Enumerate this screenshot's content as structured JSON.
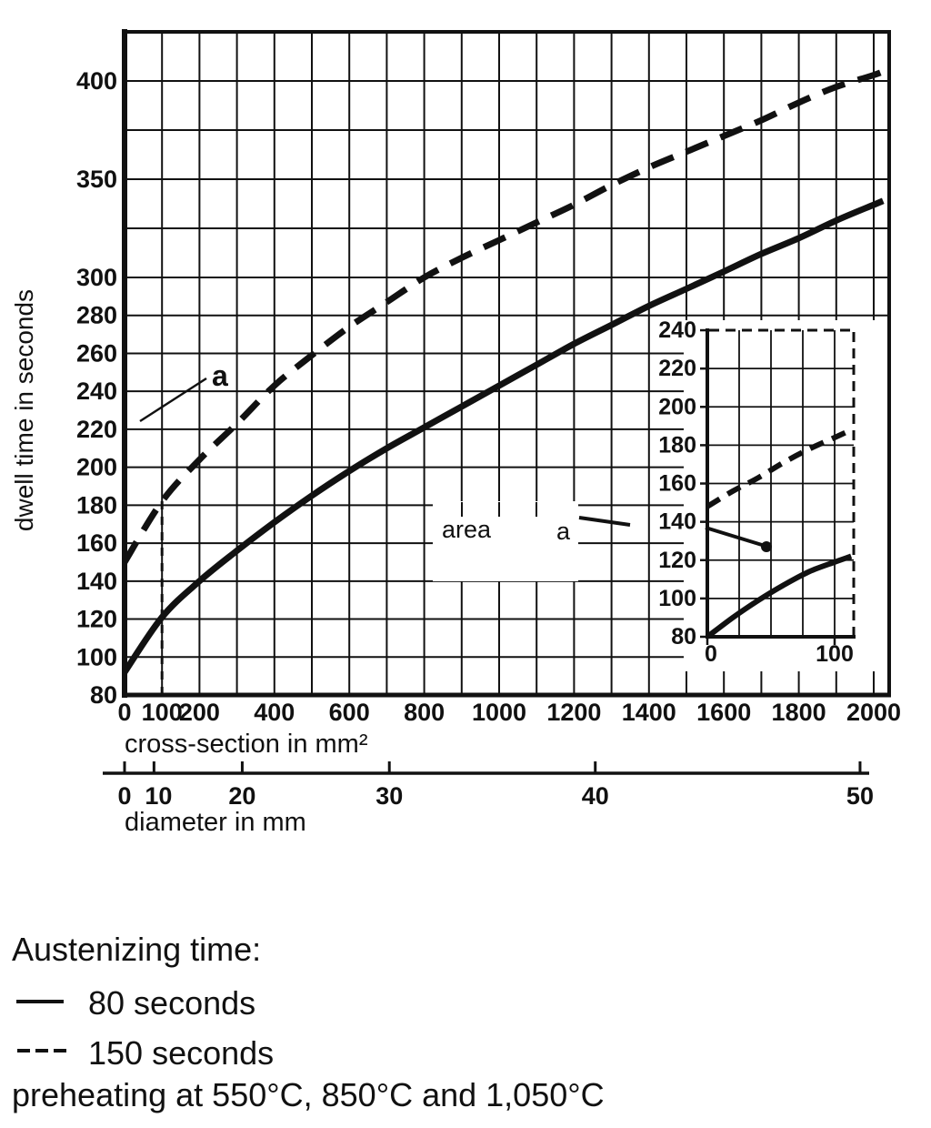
{
  "chart_data": {
    "type": "line",
    "title": "",
    "xlabel": "cross-section in mm²",
    "ylabel": "dwell time in seconds",
    "secondary_xlabel": "diameter in mm",
    "xlim": [
      0,
      2040
    ],
    "ylim": [
      80,
      425
    ],
    "grid": true,
    "x_tick_labels": [
      0,
      100,
      200,
      400,
      600,
      800,
      1000,
      1200,
      1400,
      1600,
      1800,
      2000
    ],
    "x_gridline_step": 100,
    "y_tick_labels": [
      80,
      100,
      120,
      140,
      160,
      180,
      200,
      220,
      240,
      260,
      280,
      300,
      350,
      400
    ],
    "y_gridlines_unlabeled": [
      325,
      375
    ],
    "series": [
      {
        "name": "80 seconds",
        "style": "solid",
        "points": [
          [
            0,
            92
          ],
          [
            100,
            121
          ],
          [
            200,
            140
          ],
          [
            300,
            156
          ],
          [
            400,
            171
          ],
          [
            500,
            185
          ],
          [
            600,
            198
          ],
          [
            700,
            210
          ],
          [
            800,
            221
          ],
          [
            900,
            232
          ],
          [
            1000,
            243
          ],
          [
            1100,
            254
          ],
          [
            1200,
            265
          ],
          [
            1300,
            275
          ],
          [
            1400,
            285
          ],
          [
            1500,
            294
          ],
          [
            1600,
            303
          ],
          [
            1700,
            312
          ],
          [
            1800,
            320
          ],
          [
            1900,
            329
          ],
          [
            2000,
            337
          ],
          [
            2025,
            339
          ]
        ]
      },
      {
        "name": "150 seconds",
        "style": "dashed",
        "points": [
          [
            0,
            150
          ],
          [
            100,
            182
          ],
          [
            200,
            204
          ],
          [
            300,
            223
          ],
          [
            400,
            243
          ],
          [
            500,
            259
          ],
          [
            600,
            274
          ],
          [
            700,
            287
          ],
          [
            800,
            300
          ],
          [
            900,
            310
          ],
          [
            1000,
            319
          ],
          [
            1100,
            328
          ],
          [
            1200,
            337
          ],
          [
            1300,
            347
          ],
          [
            1400,
            356
          ],
          [
            1500,
            364
          ],
          [
            1600,
            372
          ],
          [
            1700,
            380
          ],
          [
            1800,
            389
          ],
          [
            1900,
            397
          ],
          [
            2000,
            403
          ],
          [
            2040,
            406
          ]
        ]
      }
    ],
    "diameter_axis": {
      "ticks": [
        0,
        10,
        20,
        30,
        40,
        50
      ]
    },
    "annotations": {
      "dashed_curve_label": "a",
      "area_word": "area",
      "area_letter": "a",
      "area_boundary_x": 100
    },
    "inset": {
      "xlim": [
        0,
        115
      ],
      "ylim": [
        80,
        240
      ],
      "x_tick_labels": [
        0,
        100
      ],
      "x_gridlines": [
        25,
        50,
        75,
        100
      ],
      "y_tick_labels": [
        80,
        100,
        120,
        140,
        160,
        180,
        200,
        220,
        240
      ],
      "series": [
        {
          "name": "80 seconds",
          "style": "solid",
          "points": [
            [
              0,
              80
            ],
            [
              20,
              90
            ],
            [
              40,
              99
            ],
            [
              60,
              107
            ],
            [
              80,
              114
            ],
            [
              100,
              119
            ],
            [
              113,
              122
            ]
          ]
        },
        {
          "name": "150 seconds",
          "style": "dashed",
          "points": [
            [
              0,
              148
            ],
            [
              20,
              156
            ],
            [
              40,
              163
            ],
            [
              60,
              171
            ],
            [
              80,
              178
            ],
            [
              100,
              184
            ],
            [
              113,
              188
            ]
          ]
        }
      ]
    }
  },
  "legend": {
    "heading": "Austenizing time:",
    "items": [
      {
        "swatch": "solid",
        "label": "80 seconds"
      },
      {
        "swatch": "dashed",
        "label": "150 seconds"
      }
    ],
    "note": "preheating at 550°C, 850°C and 1,050°C"
  }
}
